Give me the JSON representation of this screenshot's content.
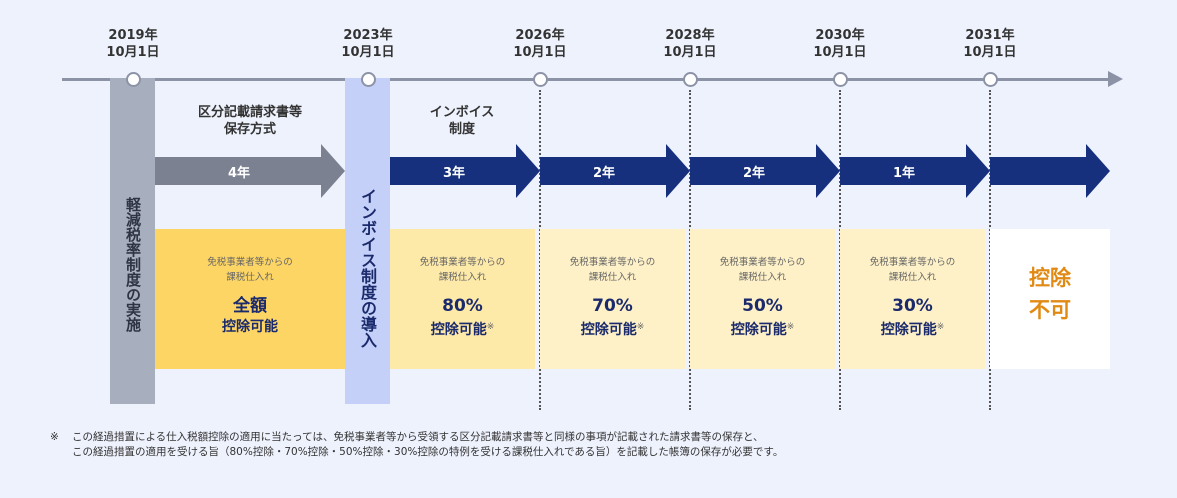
{
  "dates": [
    {
      "year": "2019年",
      "day": "10月1日"
    },
    {
      "year": "2023年",
      "day": "10月1日"
    },
    {
      "year": "2026年",
      "day": "10月1日"
    },
    {
      "year": "2028年",
      "day": "10月1日"
    },
    {
      "year": "2030年",
      "day": "10月1日"
    },
    {
      "year": "2031年",
      "day": "10月1日"
    }
  ],
  "vertical_labels": {
    "reduced_tax": "軽減税率制度の実施",
    "invoice_intro": "インボイス制度の導入"
  },
  "phases": {
    "kubun": "区分記載請求書等保存方式",
    "kubun_line1": "区分記載請求書等",
    "kubun_line2": "保存方式",
    "invoice_line1": "インボイス",
    "invoice_line2": "制度"
  },
  "arrows": [
    {
      "label": "4年",
      "color": "#7b8191"
    },
    {
      "label": "3年",
      "color": "#16307e"
    },
    {
      "label": "2年",
      "color": "#16307e"
    },
    {
      "label": "2年",
      "color": "#16307e"
    },
    {
      "label": "1年",
      "color": "#16307e"
    },
    {
      "label": "",
      "color": "#16307e"
    }
  ],
  "boxes": [
    {
      "line1": "免税事業者等からの",
      "line2": "課税仕入れ",
      "big": "全額",
      "sub": "控除可能",
      "mark": "",
      "bg": "#fdd565"
    },
    {
      "line1": "免税事業者等からの",
      "line2": "課税仕入れ",
      "big": "80%",
      "sub": "控除可能",
      "mark": "※",
      "bg": "#fde9a8"
    },
    {
      "line1": "免税事業者等からの",
      "line2": "課税仕入れ",
      "big": "70%",
      "sub": "控除可能",
      "mark": "※",
      "bg": "#fef1c7"
    },
    {
      "line1": "免税事業者等からの",
      "line2": "課税仕入れ",
      "big": "50%",
      "sub": "控除可能",
      "mark": "※",
      "bg": "#fef1c7"
    },
    {
      "line1": "免税事業者等からの",
      "line2": "課税仕入れ",
      "big": "30%",
      "sub": "控除可能",
      "mark": "※",
      "bg": "#fef1c7"
    }
  ],
  "final_box": {
    "line1": "控除",
    "line2": "不可",
    "color": "#e08a14"
  },
  "note": {
    "mark": "※",
    "line1": "この経過措置による仕入税額控除の適用に当たっては、免税事業者等から受領する区分記載請求書等と同様の事項が記載された請求書等の保存と、",
    "line2": "この経過措置の適用を受ける旨（80%控除・70%控除・50%控除・30%控除の特例を受ける課税仕入れである旨）を記載した帳簿の保存が必要です。"
  }
}
